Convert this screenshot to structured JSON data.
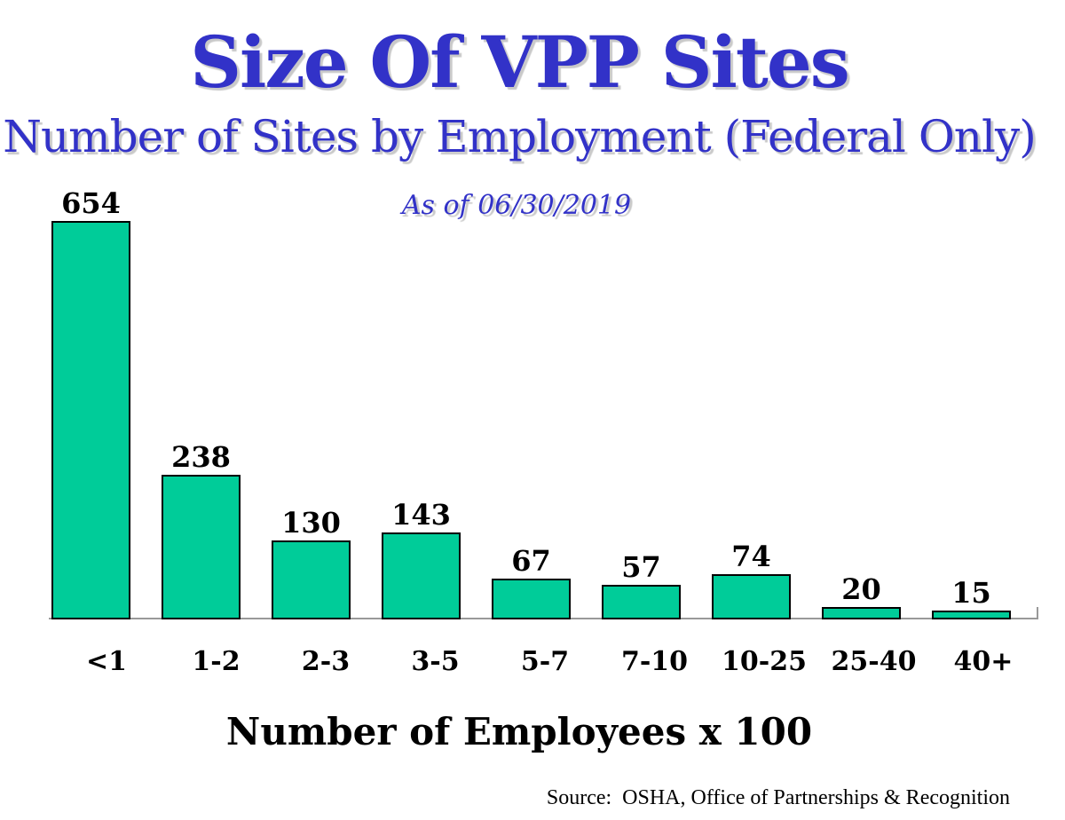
{
  "title": "Size Of VPP Sites",
  "subtitle": "Number of Sites by Employment (Federal Only)",
  "as_of": "As of 06/30/2019",
  "xlabel": "Number of Employees x 100",
  "source": "Source:  OSHA, Office of Partnerships & Recognition",
  "colors": {
    "heading_blue": "#3232C8",
    "bar_fill": "#00CC99",
    "bar_border": "#000000",
    "axis_line": "#999999",
    "heading_shadow": "#C9C9C9",
    "background": "#FFFFFF",
    "label_text": "#000000"
  },
  "chart_data": {
    "type": "bar",
    "title": "Size Of VPP Sites",
    "subtitle": "Number of Sites by Employment (Federal Only)",
    "annotation": "As of 06/30/2019",
    "categories": [
      "<1",
      "1-2",
      "2-3",
      "3-5",
      "5-7",
      "7-10",
      "10-25",
      "25-40",
      "40+"
    ],
    "values": [
      654,
      238,
      130,
      143,
      67,
      57,
      74,
      20,
      15
    ],
    "xlabel": "Number of Employees x 100",
    "ylabel": "",
    "ylim": [
      0,
      700
    ],
    "grid": false,
    "legend": false,
    "y_axis_visible": false,
    "data_labels": true,
    "source": "Source:  OSHA, Office of Partnerships & Recognition"
  }
}
